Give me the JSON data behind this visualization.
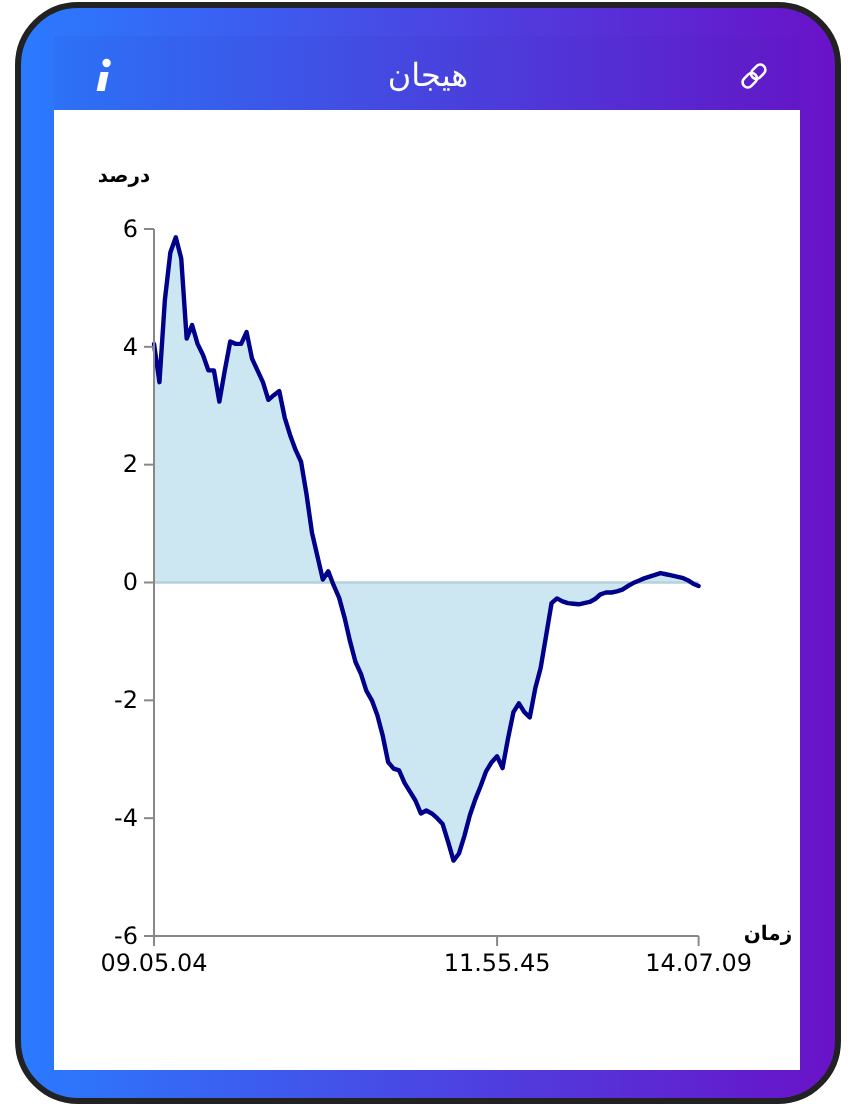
{
  "chart_data": {
    "type": "area",
    "title": "هیجان",
    "xlabel": "زمان",
    "ylabel": "درصد",
    "categories": [
      "09.05.04",
      null,
      null,
      null,
      null,
      null,
      null,
      null,
      null,
      null,
      null,
      null,
      null,
      null,
      null,
      null,
      null,
      null,
      null,
      null,
      null,
      null,
      null,
      null,
      null,
      null,
      null,
      null,
      null,
      null,
      null,
      null,
      null,
      null,
      null,
      null,
      null,
      null,
      null,
      null,
      null,
      null,
      null,
      null,
      null,
      null,
      null,
      null,
      null,
      null,
      null,
      null,
      null,
      null,
      null,
      null,
      null,
      null,
      null,
      null,
      null,
      null,
      null,
      "11.55.45",
      null,
      null,
      null,
      null,
      null,
      null,
      null,
      null,
      null,
      null,
      null,
      null,
      null,
      null,
      null,
      null,
      null,
      null,
      null,
      null,
      null,
      null,
      null,
      null,
      null,
      null,
      null,
      null,
      null,
      null,
      null,
      null,
      null,
      null,
      null,
      null,
      "14.07.09"
    ],
    "series": [
      {
        "color": "#00008b",
        "values": [
          4.05,
          3.4,
          4.8,
          5.6,
          5.86,
          5.5,
          4.14,
          4.37,
          4.05,
          3.86,
          3.6,
          3.6,
          3.07,
          3.6,
          4.09,
          4.05,
          4.05,
          4.25,
          3.8,
          3.6,
          3.4,
          3.1,
          3.18,
          3.25,
          2.8,
          2.5,
          2.25,
          2.05,
          1.5,
          0.85,
          0.45,
          0.05,
          0.19,
          -0.05,
          -0.26,
          -0.6,
          -1.0,
          -1.35,
          -1.55,
          -1.84,
          -2.0,
          -2.25,
          -2.6,
          -3.05,
          -3.16,
          -3.19,
          -3.4,
          -3.55,
          -3.7,
          -3.92,
          -3.87,
          -3.92,
          -4.0,
          -4.1,
          -4.4,
          -4.72,
          -4.6,
          -4.3,
          -3.95,
          -3.68,
          -3.45,
          -3.2,
          -3.05,
          -2.95,
          -3.15,
          -2.65,
          -2.2,
          -2.05,
          -2.2,
          -2.29,
          -1.8,
          -1.45,
          -0.9,
          -0.35,
          -0.27,
          -0.32,
          -0.35,
          -0.36,
          -0.37,
          -0.35,
          -0.33,
          -0.28,
          -0.2,
          -0.17,
          -0.17,
          -0.15,
          -0.12,
          -0.06,
          -0.01,
          0.03,
          0.07,
          0.1,
          0.13,
          0.16,
          0.14,
          0.12,
          0.1,
          0.08,
          0.04,
          -0.02,
          -0.06
        ]
      }
    ],
    "ylim": [
      -6,
      6
    ],
    "yticks": [
      -6,
      -4,
      -2,
      0,
      2,
      4,
      6
    ],
    "ref_lines": [
      {
        "axis": "y",
        "value": 0,
        "color": "#b8d0d8"
      }
    ]
  }
}
